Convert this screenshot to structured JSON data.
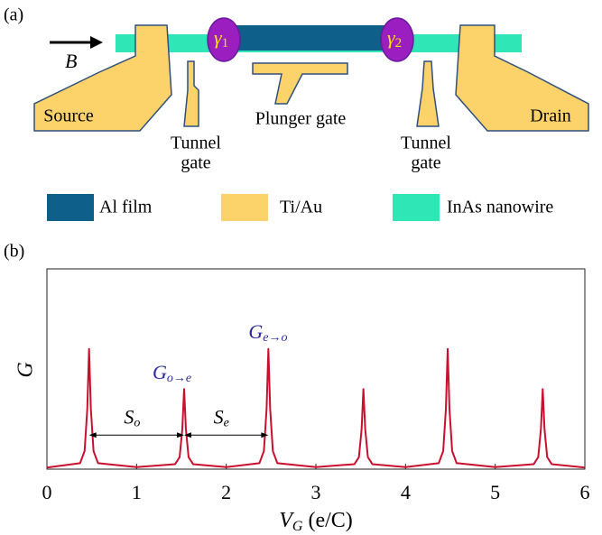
{
  "diagram": {
    "panel_a": "(a)",
    "panel_b": "(b)",
    "field": "B",
    "gamma1": {
      "main": "γ",
      "sub": "1"
    },
    "gamma2": {
      "main": "γ",
      "sub": "2"
    },
    "source": "Source",
    "drain": "Drain",
    "plunger": "Plunger gate",
    "tunnel_left": [
      "Tunnel",
      "gate"
    ],
    "tunnel_right": [
      "Tunnel",
      "gate"
    ],
    "legend": [
      {
        "label": "Al film",
        "color": "#0e5f8a"
      },
      {
        "label": "Ti/Au",
        "color": "#fcd36a"
      },
      {
        "label": "InAs nanowire",
        "color": "#2ee6b6"
      }
    ]
  },
  "chart_data": {
    "type": "line",
    "xlabel": {
      "main": "V",
      "sub": "G",
      "rest": " (e/C)"
    },
    "ylabel": "G",
    "x": [
      0,
      0.37,
      0.42,
      0.45,
      0.47,
      0.49,
      0.52,
      0.57,
      1.0,
      1.43,
      1.48,
      1.51,
      1.53,
      1.55,
      1.58,
      1.63,
      2.0,
      2.37,
      2.42,
      2.45,
      2.47,
      2.49,
      2.52,
      2.57,
      3.0,
      3.43,
      3.48,
      3.51,
      3.53,
      3.55,
      3.58,
      3.63,
      4.0,
      4.37,
      4.42,
      4.45,
      4.47,
      4.49,
      4.52,
      4.57,
      5.0,
      5.43,
      5.48,
      5.51,
      5.53,
      5.55,
      5.58,
      5.63,
      6
    ],
    "series": [
      {
        "color": "#c8102e",
        "values": [
          0.008,
          0.03,
          0.09,
          0.3,
          0.6,
          0.3,
          0.09,
          0.03,
          0.01,
          0.025,
          0.06,
          0.2,
          0.4,
          0.2,
          0.06,
          0.025,
          0.01,
          0.03,
          0.09,
          0.3,
          0.6,
          0.3,
          0.09,
          0.03,
          0.01,
          0.025,
          0.06,
          0.2,
          0.4,
          0.2,
          0.06,
          0.025,
          0.01,
          0.03,
          0.09,
          0.3,
          0.6,
          0.3,
          0.09,
          0.03,
          0.01,
          0.025,
          0.06,
          0.2,
          0.4,
          0.2,
          0.06,
          0.025,
          0.008
        ]
      }
    ],
    "xlim": [
      0,
      6
    ],
    "ylim": [
      0,
      1
    ],
    "xticks": [
      0,
      1,
      2,
      3,
      4,
      5,
      6
    ],
    "annotations": [
      {
        "main": "G",
        "sub": "o→e"
      },
      {
        "main": "G",
        "sub": "e→o"
      },
      {
        "main": "S",
        "sub": "o"
      },
      {
        "main": "S",
        "sub": "e"
      }
    ]
  }
}
